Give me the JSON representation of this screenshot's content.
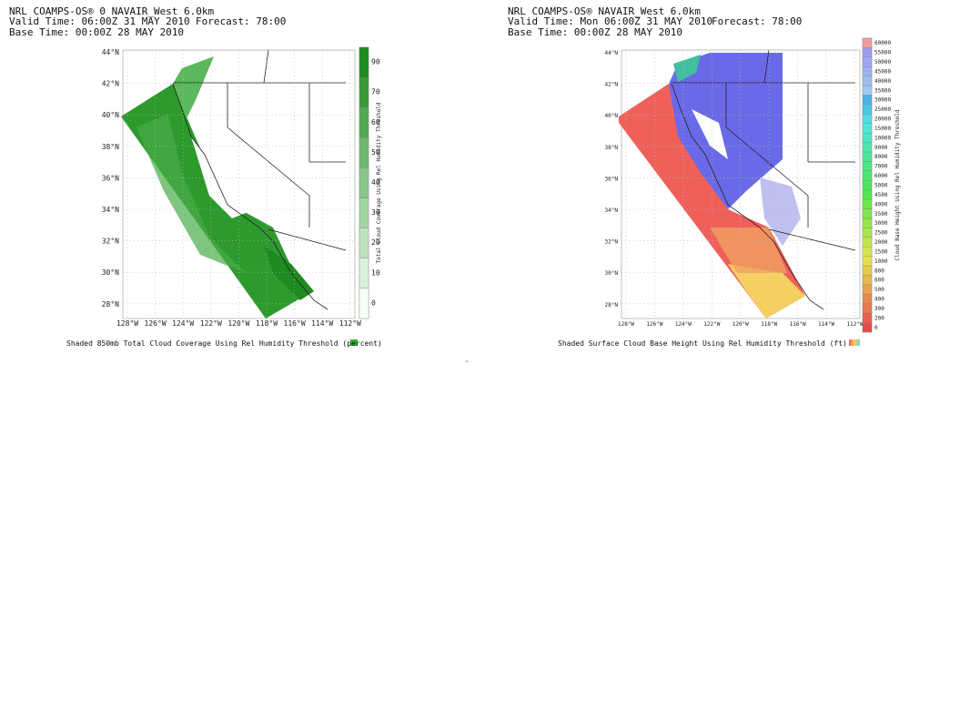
{
  "left_panel": {
    "title": "NRL COAMPS-OS® 0 NAVAIR_West 6.0km",
    "valid_time": "Valid Time: 06:00Z 31 MAY 2010",
    "forecast": "Forecast: 78:00",
    "base_time": "Base Time: 00:00Z 28 MAY 2010",
    "lat_labels": [
      "44°N",
      "42°N",
      "40°N",
      "38°N",
      "36°N",
      "34°N",
      "32°N",
      "30°N",
      "28°N"
    ],
    "lon_labels": [
      "128°W",
      "126°W",
      "124°W",
      "122°W",
      "120°W",
      "118°W",
      "116°W",
      "114°W",
      "112°W"
    ],
    "colorbar_labels": [
      "90",
      "70",
      "60",
      "50",
      "40",
      "30",
      "20",
      "10",
      "0"
    ],
    "colorbar_title": "Total Cloud Coverage Using Rel Humidity Threshold",
    "caption": "Shaded 850mb Total Cloud Coverage Using Rel Humidity Threshold (percent)"
  },
  "right_panel": {
    "title": "NRL COAMPS-OS® NAVAIR_West 6.0km",
    "valid_time": "Valid Time: Mon 06:00Z 31 MAY 2010",
    "forecast": "Forecast: 78:00",
    "base_time": "Base Time: 00:00Z 28 MAY 2010",
    "lat_labels": [
      "44°N",
      "42°N",
      "40°N",
      "38°N",
      "36°N",
      "34°N",
      "32°N",
      "30°N",
      "28°N"
    ],
    "lon_labels": [
      "128°W",
      "126°W",
      "124°W",
      "122°W",
      "120°W",
      "118°W",
      "116°W",
      "114°W",
      "112°W"
    ],
    "colorbar_labels": [
      "60000",
      "55000",
      "50000",
      "45000",
      "40000",
      "35000",
      "30000",
      "25000",
      "20000",
      "15000",
      "10000",
      "9000",
      "8000",
      "7000",
      "6000",
      "5000",
      "4500",
      "4000",
      "3500",
      "3000",
      "2500",
      "2000",
      "1500",
      "1000",
      "800",
      "600",
      "500",
      "400",
      "300",
      "200",
      "0"
    ],
    "colorbar_title": "Cloud Base Height Using Rel Humidity Threshold",
    "caption": "Shaded Surface Cloud Base Height Using Rel Humidity Threshold (ft)"
  }
}
